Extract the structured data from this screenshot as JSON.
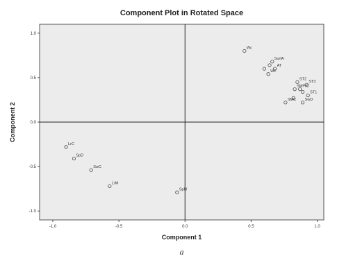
{
  "chart_data": {
    "type": "scatter",
    "title": "Component Plot in Rotated Space",
    "xlabel": "Component 1",
    "ylabel": "Component 2",
    "xlim": [
      -1.1,
      1.05
    ],
    "ylim": [
      -1.1,
      1.1
    ],
    "xticks": [
      "-1.0",
      "-0.5",
      "0.0",
      "0.5",
      "1.0"
    ],
    "xtick_values": [
      -1.0,
      -0.5,
      0.0,
      0.5,
      1.0
    ],
    "yticks": [
      "1.0",
      "0.5",
      "0.0",
      "-0.5",
      "-1.0"
    ],
    "ytick_values": [
      1.0,
      0.5,
      0.0,
      -0.5,
      -1.0
    ],
    "reference_lines": {
      "x": 0,
      "y": 0
    },
    "grid": false,
    "points": [
      {
        "label": "Wc",
        "x": 0.45,
        "y": 0.8
      },
      {
        "label": "SurfA",
        "x": 0.66,
        "y": 0.68
      },
      {
        "label": "",
        "x": 0.64,
        "y": 0.64
      },
      {
        "label": "AT",
        "x": 0.68,
        "y": 0.6
      },
      {
        "label": "",
        "x": 0.6,
        "y": 0.6
      },
      {
        "label": "WF",
        "x": 0.63,
        "y": 0.54
      },
      {
        "label": "ST2",
        "x": 0.85,
        "y": 0.45
      },
      {
        "label": "ST3",
        "x": 0.92,
        "y": 0.42
      },
      {
        "label": "SMPrC",
        "x": 0.83,
        "y": 0.37
      },
      {
        "label": "",
        "x": 0.87,
        "y": 0.37
      },
      {
        "label": "",
        "x": 0.89,
        "y": 0.34
      },
      {
        "label": "ST1",
        "x": 0.93,
        "y": 0.3
      },
      {
        "label": "",
        "x": 0.82,
        "y": 0.27
      },
      {
        "label": "SMC",
        "x": 0.76,
        "y": 0.22
      },
      {
        "label": "SwD",
        "x": 0.89,
        "y": 0.22
      },
      {
        "label": "LrC",
        "x": -0.9,
        "y": -0.28
      },
      {
        "label": "SpD",
        "x": -0.84,
        "y": -0.41
      },
      {
        "label": "SwC",
        "x": -0.71,
        "y": -0.54
      },
      {
        "label": "LrM",
        "x": -0.57,
        "y": -0.72
      },
      {
        "label": "SpM",
        "x": -0.06,
        "y": -0.79
      }
    ],
    "caption": "a"
  }
}
